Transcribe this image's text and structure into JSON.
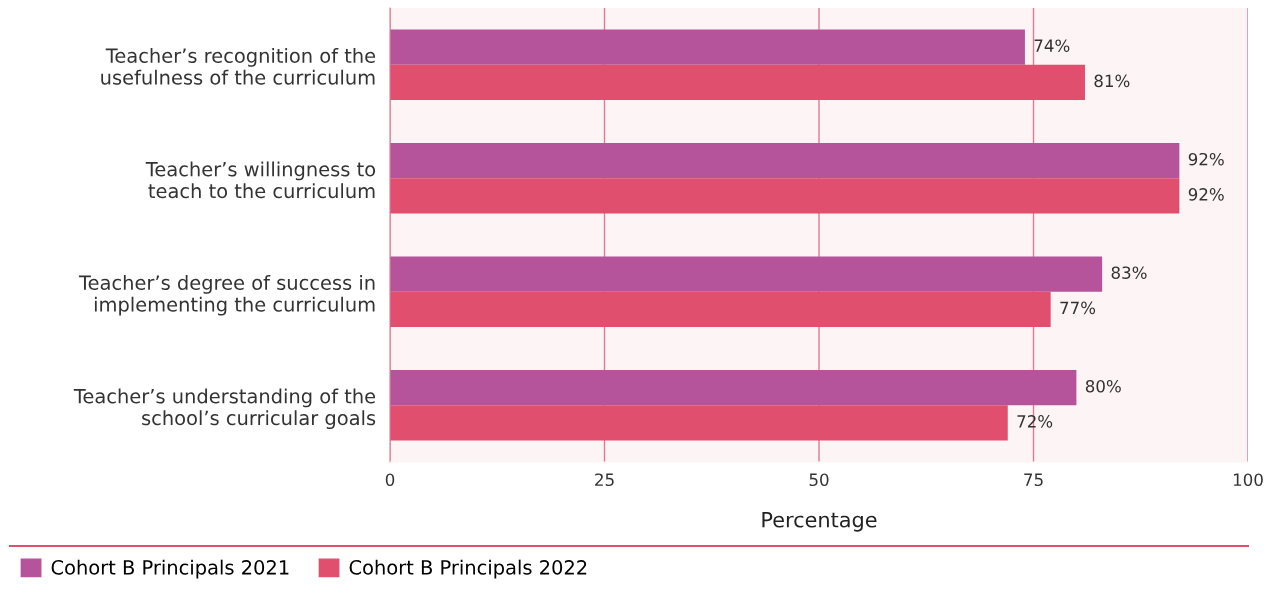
{
  "chart_data": {
    "type": "bar",
    "orientation": "horizontal",
    "categories": [
      "Teacher’s recognition of the\nusefulness of the curriculum",
      "Teacher’s willingness to\nteach to the curriculum",
      "Teacher’s degree of success in\nimplementing the curriculum",
      "Teacher’s understanding of the\nschool’s curricular goals"
    ],
    "series": [
      {
        "name": "Cohort B Principals 2021",
        "color": "#b5539b",
        "values": [
          74,
          92,
          83,
          80
        ],
        "value_labels": [
          "74%",
          "92%",
          "83%",
          "80%"
        ]
      },
      {
        "name": "Cohort B Principals 2022",
        "color": "#e0506e",
        "values": [
          81,
          92,
          77,
          72
        ],
        "value_labels": [
          "81%",
          "92%",
          "77%",
          "72%"
        ]
      }
    ],
    "xlabel": "Percentage",
    "xlim": [
      0,
      100
    ],
    "xticks": [
      0,
      25,
      50,
      75,
      100
    ],
    "grid": "x",
    "legend": "bottom"
  }
}
